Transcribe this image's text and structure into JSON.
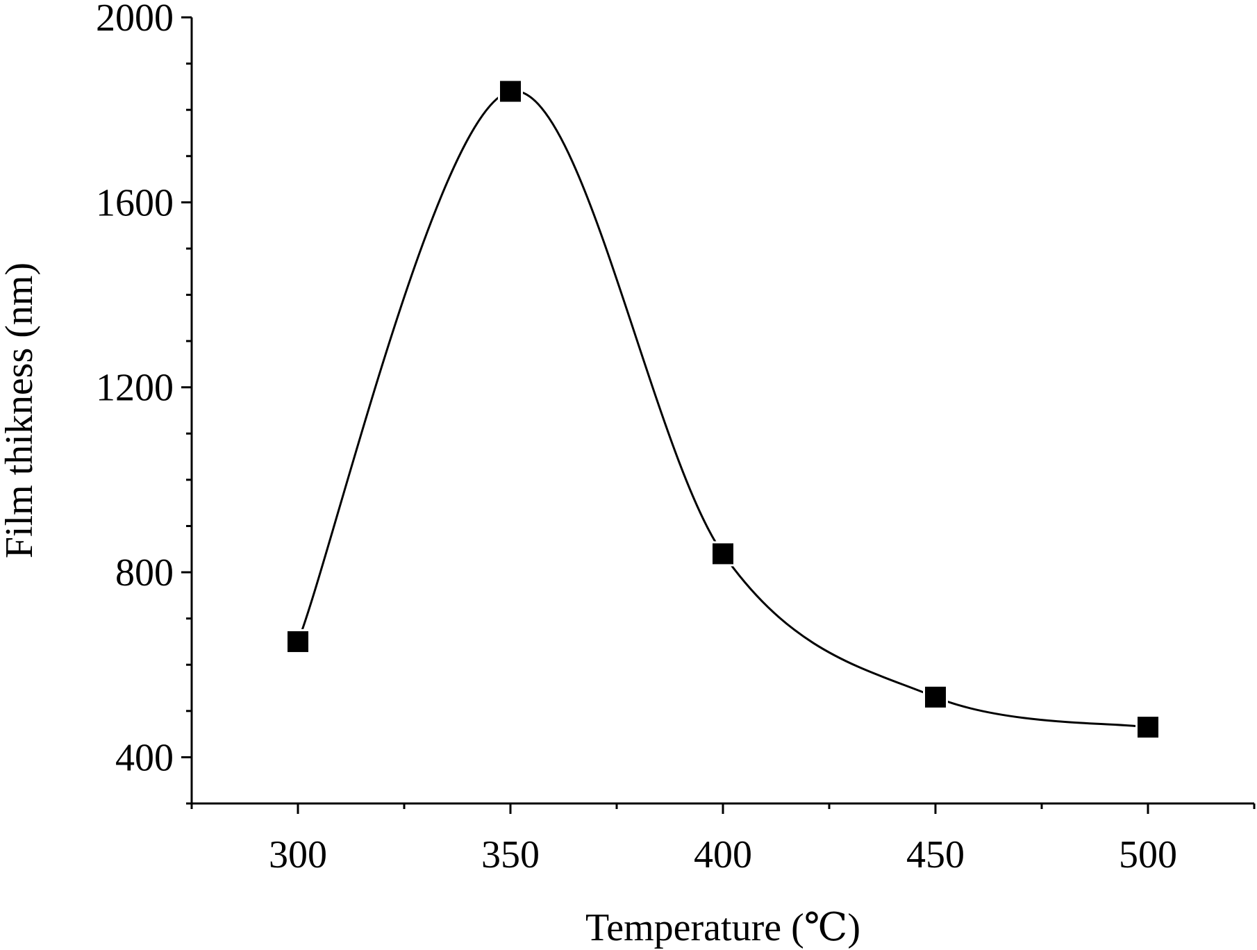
{
  "chart_data": {
    "type": "scatter",
    "title": "",
    "xlabel": "Temperature (℃)",
    "ylabel": "Film thikness (nm)",
    "xlim": [
      275,
      525
    ],
    "ylim": [
      300,
      2000
    ],
    "x_major_ticks": [
      300,
      350,
      400,
      450,
      500
    ],
    "x_minor_ticks": [
      275,
      325,
      375,
      425,
      475,
      525
    ],
    "y_major_ticks": [
      400,
      800,
      1200,
      1600,
      2000
    ],
    "y_minor_ticks": [
      300,
      500,
      600,
      700,
      900,
      1000,
      1100,
      1300,
      1400,
      1500,
      1700,
      1800,
      1900
    ],
    "grid": false,
    "legend": "none",
    "series": [
      {
        "marker": "square",
        "color": "#000000",
        "line": "smooth spline",
        "x": [
          300,
          350,
          400,
          450,
          500
        ],
        "y": [
          650,
          1840,
          840,
          530,
          465
        ]
      }
    ]
  }
}
